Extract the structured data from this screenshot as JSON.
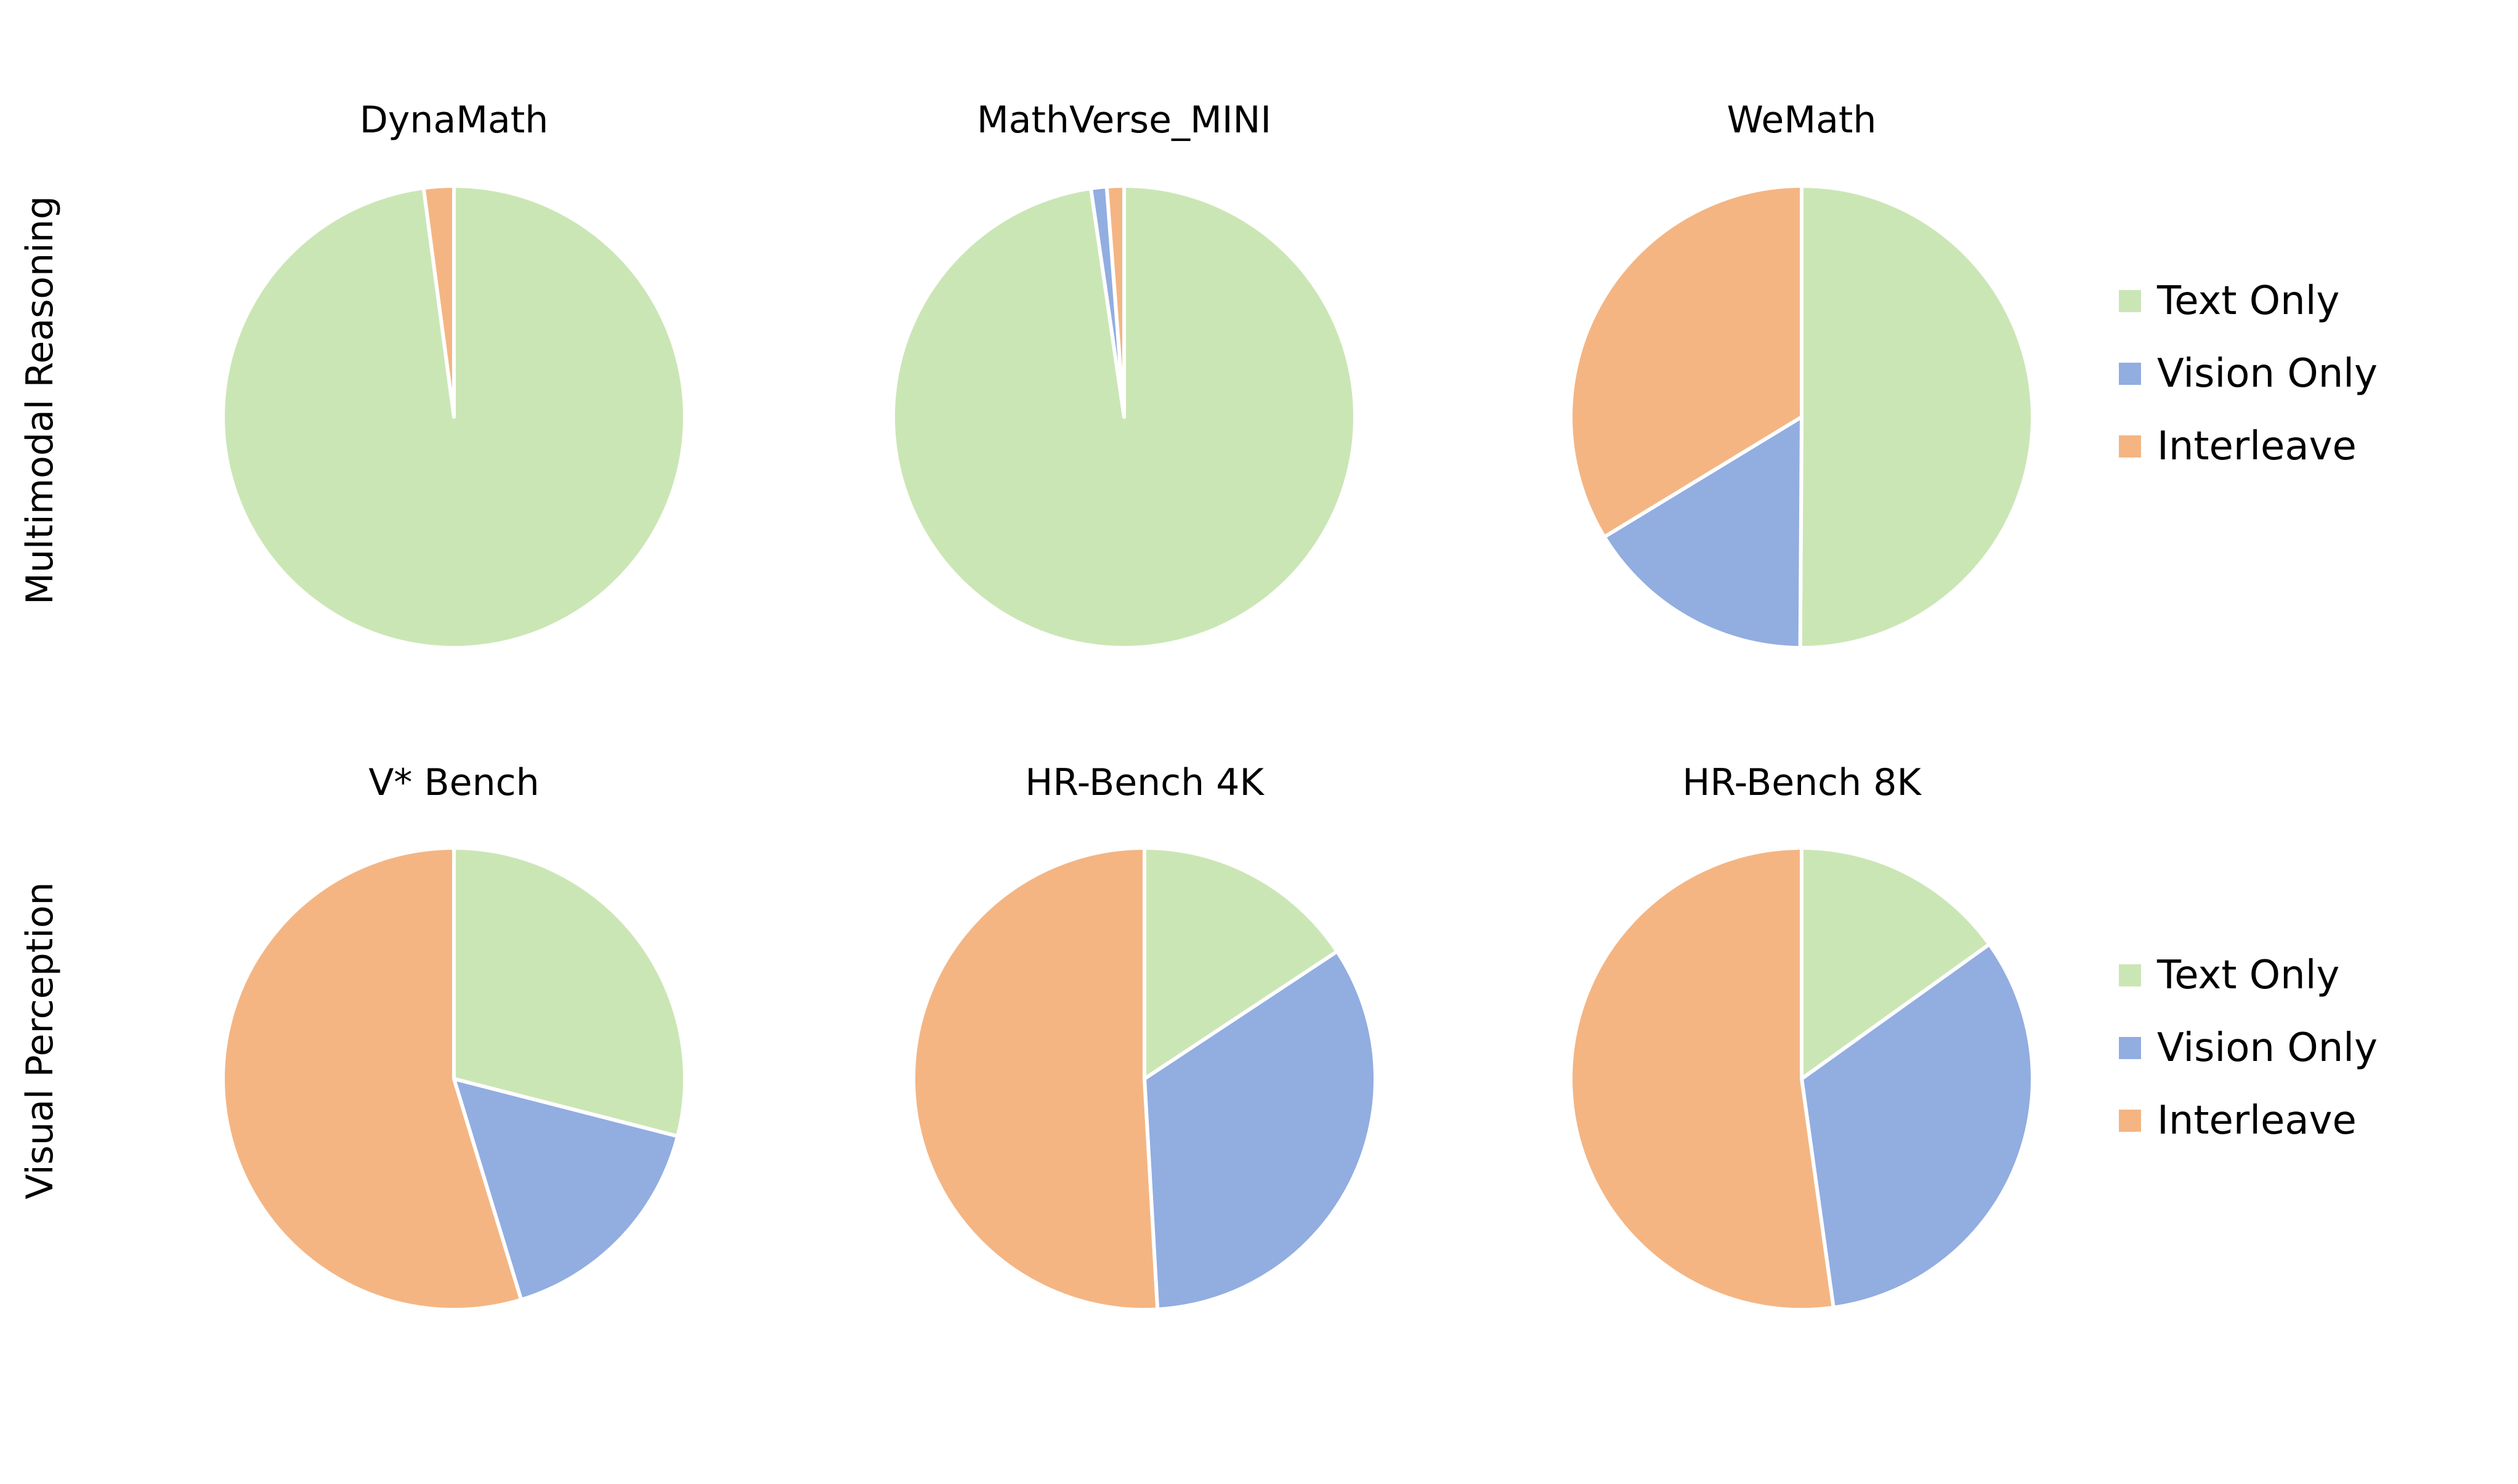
{
  "colors": {
    "text_only": "#cbe6b5",
    "vision_only": "#92ade0",
    "interleave": "#f4b583"
  },
  "legend": [
    "Text Only",
    "Vision Only",
    "Interleave"
  ],
  "rows": [
    {
      "label": "Multimodal Reasoning"
    },
    {
      "label": "Visual Perception"
    }
  ],
  "chart_data": [
    {
      "type": "pie",
      "title": "DynaMath",
      "row": "Multimodal Reasoning",
      "labels": [
        "Text Only",
        "Vision Only",
        "Interleave"
      ],
      "values": [
        97.9,
        0.0,
        2.1
      ]
    },
    {
      "type": "pie",
      "title": "MathVerse_MINI",
      "row": "Multimodal Reasoning",
      "labels": [
        "Text Only",
        "Vision Only",
        "Interleave"
      ],
      "values": [
        97.7,
        1.1,
        1.2
      ]
    },
    {
      "type": "pie",
      "title": "WeMath",
      "row": "Multimodal Reasoning",
      "labels": [
        "Text Only",
        "Vision Only",
        "Interleave"
      ],
      "values": [
        50.1,
        16.2,
        33.7
      ]
    },
    {
      "type": "pie",
      "title": "V* Bench",
      "row": "Visual Perception",
      "labels": [
        "Text Only",
        "Vision Only",
        "Interleave"
      ],
      "values": [
        29.0,
        16.3,
        54.7
      ]
    },
    {
      "type": "pie",
      "title": "HR-Bench 4K",
      "row": "Visual Perception",
      "labels": [
        "Text Only",
        "Vision Only",
        "Interleave"
      ],
      "values": [
        15.7,
        33.4,
        50.9
      ]
    },
    {
      "type": "pie",
      "title": "HR-Bench 8K",
      "row": "Visual Perception",
      "labels": [
        "Text Only",
        "Vision Only",
        "Interleave"
      ],
      "values": [
        15.1,
        32.7,
        52.2
      ]
    }
  ]
}
